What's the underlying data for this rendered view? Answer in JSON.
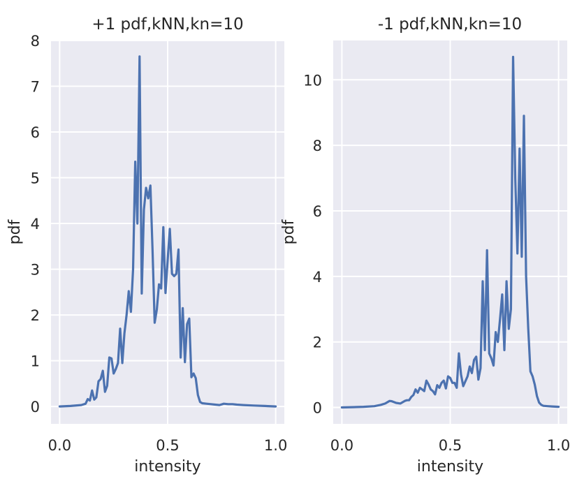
{
  "chart_data": [
    {
      "type": "line",
      "title": "+1 pdf,kNN,kn=10",
      "xlabel": "intensity",
      "ylabel": "pdf",
      "xlim": [
        -0.04,
        1.04
      ],
      "ylim": [
        -0.38,
        8.0
      ],
      "xticks": [
        0.0,
        0.5,
        1.0
      ],
      "xtick_labels": [
        "0.0",
        "0.5",
        "1.0"
      ],
      "yticks": [
        0,
        1,
        2,
        3,
        4,
        5,
        6,
        7,
        8
      ],
      "ytick_labels": [
        "0",
        "1",
        "2",
        "3",
        "4",
        "5",
        "6",
        "7",
        "8"
      ],
      "grid": true,
      "line_color": "#4c72b0",
      "background": "#eaeaf2",
      "x": [
        0.0,
        0.05,
        0.1,
        0.12,
        0.13,
        0.14,
        0.15,
        0.16,
        0.17,
        0.18,
        0.19,
        0.2,
        0.21,
        0.22,
        0.23,
        0.24,
        0.25,
        0.26,
        0.27,
        0.28,
        0.29,
        0.3,
        0.31,
        0.32,
        0.33,
        0.34,
        0.35,
        0.36,
        0.37,
        0.38,
        0.39,
        0.4,
        0.41,
        0.42,
        0.43,
        0.44,
        0.45,
        0.46,
        0.47,
        0.48,
        0.49,
        0.5,
        0.51,
        0.52,
        0.53,
        0.54,
        0.55,
        0.56,
        0.57,
        0.58,
        0.59,
        0.6,
        0.61,
        0.62,
        0.63,
        0.64,
        0.65,
        0.66,
        0.68,
        0.7,
        0.72,
        0.74,
        0.76,
        0.78,
        0.8,
        0.82,
        0.85,
        0.9,
        0.95,
        1.0
      ],
      "values": [
        0.0,
        0.01,
        0.03,
        0.06,
        0.16,
        0.13,
        0.35,
        0.15,
        0.2,
        0.55,
        0.6,
        0.78,
        0.32,
        0.45,
        1.07,
        1.05,
        0.72,
        0.82,
        0.95,
        1.7,
        0.95,
        1.6,
        2.0,
        2.52,
        2.07,
        3.0,
        5.35,
        4.0,
        7.65,
        2.47,
        4.3,
        4.78,
        4.55,
        4.83,
        3.4,
        1.83,
        2.12,
        2.67,
        2.58,
        3.92,
        2.48,
        3.2,
        3.88,
        2.9,
        2.85,
        2.9,
        3.43,
        1.07,
        2.15,
        0.97,
        1.8,
        1.92,
        0.64,
        0.72,
        0.62,
        0.25,
        0.1,
        0.07,
        0.06,
        0.05,
        0.04,
        0.03,
        0.06,
        0.05,
        0.05,
        0.04,
        0.03,
        0.02,
        0.01,
        0.0
      ]
    },
    {
      "type": "line",
      "title": "-1 pdf,kNN,kn=10",
      "xlabel": "intensity",
      "ylabel": "pdf",
      "xlim": [
        -0.04,
        1.04
      ],
      "ylim": [
        -0.5,
        11.2
      ],
      "xticks": [
        0.0,
        0.5,
        1.0
      ],
      "xtick_labels": [
        "0.0",
        "0.5",
        "1.0"
      ],
      "yticks": [
        0,
        2,
        4,
        6,
        8,
        10
      ],
      "ytick_labels": [
        "0",
        "2",
        "4",
        "6",
        "8",
        "10"
      ],
      "grid": true,
      "line_color": "#4c72b0",
      "background": "#eaeaf2",
      "x": [
        0.0,
        0.05,
        0.1,
        0.15,
        0.18,
        0.2,
        0.22,
        0.23,
        0.25,
        0.27,
        0.29,
        0.3,
        0.31,
        0.32,
        0.33,
        0.34,
        0.35,
        0.36,
        0.37,
        0.38,
        0.39,
        0.4,
        0.41,
        0.42,
        0.43,
        0.44,
        0.45,
        0.46,
        0.47,
        0.48,
        0.49,
        0.5,
        0.51,
        0.52,
        0.53,
        0.54,
        0.55,
        0.56,
        0.57,
        0.58,
        0.59,
        0.6,
        0.61,
        0.62,
        0.63,
        0.64,
        0.65,
        0.66,
        0.67,
        0.68,
        0.69,
        0.7,
        0.71,
        0.72,
        0.73,
        0.74,
        0.75,
        0.76,
        0.77,
        0.78,
        0.79,
        0.8,
        0.81,
        0.82,
        0.83,
        0.84,
        0.85,
        0.86,
        0.87,
        0.88,
        0.89,
        0.9,
        0.91,
        0.92,
        0.93,
        0.95,
        0.97,
        1.0
      ],
      "values": [
        0.0,
        0.01,
        0.02,
        0.04,
        0.08,
        0.12,
        0.2,
        0.19,
        0.14,
        0.12,
        0.2,
        0.22,
        0.22,
        0.32,
        0.38,
        0.55,
        0.45,
        0.6,
        0.55,
        0.5,
        0.82,
        0.7,
        0.55,
        0.5,
        0.4,
        0.68,
        0.6,
        0.75,
        0.82,
        0.58,
        0.95,
        0.9,
        0.75,
        0.75,
        0.6,
        1.65,
        1.0,
        0.65,
        0.8,
        0.95,
        1.25,
        1.05,
        1.45,
        1.55,
        0.85,
        1.2,
        3.85,
        1.75,
        4.8,
        1.65,
        1.5,
        1.28,
        2.3,
        2.0,
        2.7,
        3.45,
        1.75,
        3.85,
        2.4,
        3.0,
        10.7,
        7.0,
        4.7,
        7.9,
        4.6,
        8.9,
        4.0,
        2.4,
        1.1,
        0.95,
        0.7,
        0.35,
        0.15,
        0.08,
        0.05,
        0.04,
        0.03,
        0.02
      ]
    }
  ]
}
